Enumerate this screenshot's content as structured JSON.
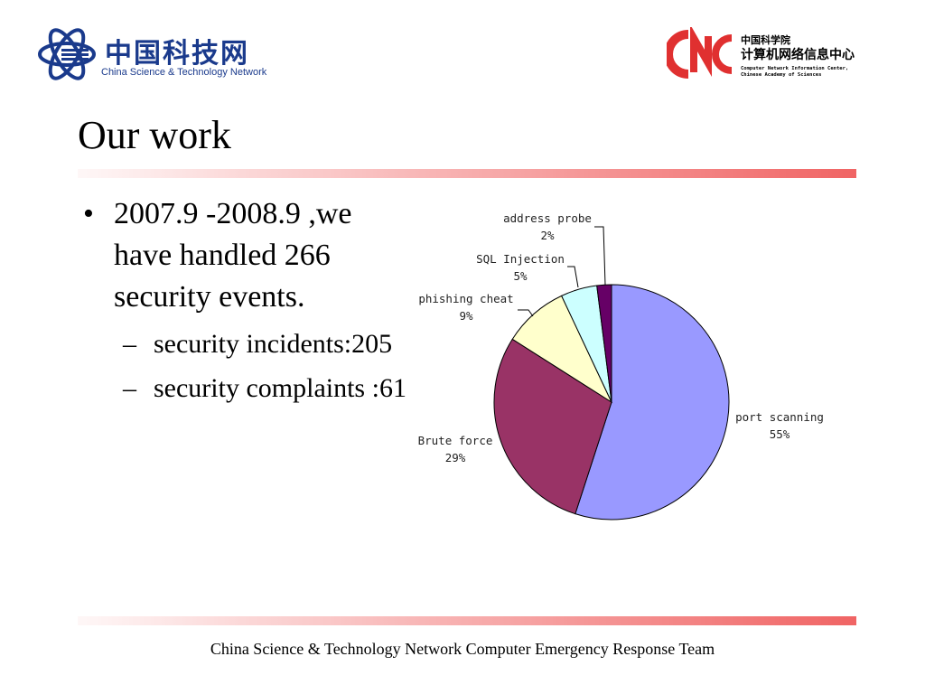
{
  "header": {
    "left_logo": {
      "name_cn": "中国科技网",
      "name_en": "China Science & Technology Network",
      "icon": "atom-orbit-icon",
      "color": "#1a3a8c"
    },
    "right_logo": {
      "mark": "CNC",
      "line1_cn": "中国科学院",
      "line2_cn": "计算机网络信息中心",
      "line3_en": "Computer Network Information Center,",
      "line4_en": "Chinese Academy of Sciences",
      "mark_color": "#e03030"
    }
  },
  "slide": {
    "title": "Our work",
    "bullets": [
      {
        "text": "2007.9 -2008.9 ,we have handled 266 security events.",
        "sub": [
          "security incidents:205",
          "security complaints :61"
        ]
      }
    ],
    "bullet_symbol": "•",
    "sub_bullet_symbol": "–",
    "accent_color": "#f06464"
  },
  "chart_data": {
    "type": "pie",
    "title": "",
    "slices": [
      {
        "label": "port scanning",
        "value": 55,
        "pct_label": "55%",
        "color": "#9999ff"
      },
      {
        "label": "Brute force",
        "value": 29,
        "pct_label": "29%",
        "color": "#993366"
      },
      {
        "label": "phishing cheat",
        "value": 9,
        "pct_label": "9%",
        "color": "#ffffcc"
      },
      {
        "label": "SQL Injection",
        "value": 5,
        "pct_label": "5%",
        "color": "#ccffff"
      },
      {
        "label": "address probe",
        "value": 2,
        "pct_label": "2%",
        "color": "#660066"
      }
    ],
    "start_angle_deg": 0,
    "direction": "clockwise",
    "legend": "none"
  },
  "footer": {
    "text": "China Science & Technology Network Computer Emergency Response Team"
  }
}
